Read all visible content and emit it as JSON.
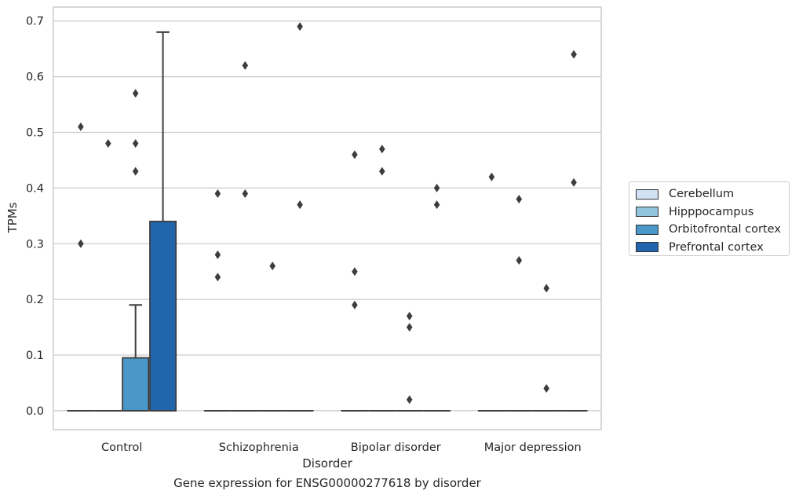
{
  "chart_data": {
    "type": "box",
    "title": "",
    "caption": "Gene expression for ENSG00000277618 by disorder",
    "xlabel": "Disorder",
    "ylabel": "TPMs",
    "ylim": [
      -0.034,
      0.725
    ],
    "yticks": [
      0.0,
      0.1,
      0.2,
      0.3,
      0.4,
      0.5,
      0.6,
      0.7
    ],
    "ytick_labels": [
      "0.0",
      "0.1",
      "0.2",
      "0.3",
      "0.4",
      "0.5",
      "0.6",
      "0.7"
    ],
    "grid": "horizontal",
    "legend_position": "right",
    "categories": [
      "Control",
      "Schizophrenia",
      "Bipolar disorder",
      "Major depression"
    ],
    "series": [
      {
        "name": "Cerebellum",
        "color": "#cfe1f2",
        "boxes": [
          {
            "q1": 0,
            "median": 0,
            "q3": 0,
            "whisker_low": 0,
            "whisker_high": 0,
            "outliers": [
              0.51,
              0.3
            ]
          },
          {
            "q1": 0,
            "median": 0,
            "q3": 0,
            "whisker_low": 0,
            "whisker_high": 0,
            "outliers": [
              0.39,
              0.28,
              0.24
            ]
          },
          {
            "q1": 0,
            "median": 0,
            "q3": 0,
            "whisker_low": 0,
            "whisker_high": 0,
            "outliers": [
              0.46,
              0.25,
              0.19
            ]
          },
          {
            "q1": 0,
            "median": 0,
            "q3": 0,
            "whisker_low": 0,
            "whisker_high": 0,
            "outliers": [
              0.42
            ]
          }
        ]
      },
      {
        "name": "Hipppocampus",
        "color": "#93c4de",
        "boxes": [
          {
            "q1": 0,
            "median": 0,
            "q3": 0,
            "whisker_low": 0,
            "whisker_high": 0,
            "outliers": [
              0.48
            ]
          },
          {
            "q1": 0,
            "median": 0,
            "q3": 0,
            "whisker_low": 0,
            "whisker_high": 0,
            "outliers": [
              0.62,
              0.39
            ]
          },
          {
            "q1": 0,
            "median": 0,
            "q3": 0,
            "whisker_low": 0,
            "whisker_high": 0,
            "outliers": [
              0.47,
              0.43
            ]
          },
          {
            "q1": 0,
            "median": 0,
            "q3": 0,
            "whisker_low": 0,
            "whisker_high": 0,
            "outliers": [
              0.38,
              0.27
            ]
          }
        ]
      },
      {
        "name": "Orbitofrontal cortex",
        "color": "#4a98c9",
        "boxes": [
          {
            "q1": 0,
            "median": 0,
            "q3": 0.095,
            "whisker_low": 0,
            "whisker_high": 0.19,
            "outliers": [
              0.57,
              0.48,
              0.43
            ]
          },
          {
            "q1": 0,
            "median": 0,
            "q3": 0,
            "whisker_low": 0,
            "whisker_high": 0,
            "outliers": [
              0.26
            ]
          },
          {
            "q1": 0,
            "median": 0,
            "q3": 0,
            "whisker_low": 0,
            "whisker_high": 0,
            "outliers": [
              0.17,
              0.15,
              0.02
            ]
          },
          {
            "q1": 0,
            "median": 0,
            "q3": 0,
            "whisker_low": 0,
            "whisker_high": 0,
            "outliers": [
              0.22,
              0.04
            ]
          }
        ]
      },
      {
        "name": "Prefrontal cortex",
        "color": "#2166ac",
        "boxes": [
          {
            "q1": 0,
            "median": 0,
            "q3": 0.34,
            "whisker_low": 0,
            "whisker_high": 0.68,
            "outliers": []
          },
          {
            "q1": 0,
            "median": 0,
            "q3": 0,
            "whisker_low": 0,
            "whisker_high": 0,
            "outliers": [
              0.69,
              0.37
            ]
          },
          {
            "q1": 0,
            "median": 0,
            "q3": 0,
            "whisker_low": 0,
            "whisker_high": 0,
            "outliers": [
              0.4,
              0.37
            ]
          },
          {
            "q1": 0,
            "median": 0,
            "q3": 0,
            "whisker_low": 0,
            "whisker_high": 0,
            "outliers": [
              0.64,
              0.41
            ]
          }
        ]
      }
    ]
  }
}
